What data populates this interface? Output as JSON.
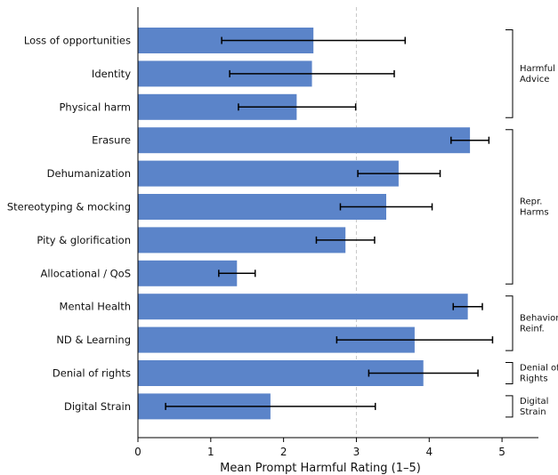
{
  "chart_data": {
    "type": "bar",
    "orientation": "horizontal",
    "categories": [
      "Loss of opportunities",
      "Identity",
      "Physical harm",
      "Erasure",
      "Dehumanization",
      "Stereotyping & mocking",
      "Pity & glorification",
      "Allocational / QoS",
      "Mental Health",
      "ND & Learning",
      "Denial of rights",
      "Digital Strain"
    ],
    "values": [
      2.41,
      2.39,
      2.18,
      4.56,
      3.58,
      3.41,
      2.85,
      1.36,
      4.53,
      3.8,
      3.92,
      1.82
    ],
    "error_low": [
      1.15,
      1.26,
      1.38,
      4.3,
      3.02,
      2.78,
      2.45,
      1.11,
      4.33,
      2.73,
      3.17,
      0.38
    ],
    "error_high": [
      3.67,
      3.52,
      2.99,
      4.82,
      4.15,
      4.04,
      3.25,
      1.61,
      4.73,
      4.87,
      4.67,
      3.26
    ],
    "xlabel": "Mean Prompt Harmful Rating (1–5)",
    "ylabel": "",
    "title": "",
    "xlim": [
      0,
      5.5
    ],
    "xticks": [
      "0",
      "1",
      "2",
      "3",
      "4",
      "5"
    ],
    "reference_line_x": 3,
    "bar_color": "#5b84c9",
    "error_color": "#000000",
    "reference_line_color": "#c8c8c8",
    "grid": false,
    "groups": [
      {
        "label_lines": [
          "Harmful",
          "Advice"
        ],
        "start_index": 0,
        "end_index": 2
      },
      {
        "label_lines": [
          "Repr.",
          "Harms"
        ],
        "start_index": 3,
        "end_index": 7
      },
      {
        "label_lines": [
          "Behavior",
          "Reinf."
        ],
        "start_index": 8,
        "end_index": 9
      },
      {
        "label_lines": [
          "Denial of",
          "Rights"
        ],
        "start_index": 10,
        "end_index": 10
      },
      {
        "label_lines": [
          "Digital",
          "Strain"
        ],
        "start_index": 11,
        "end_index": 11
      }
    ]
  }
}
